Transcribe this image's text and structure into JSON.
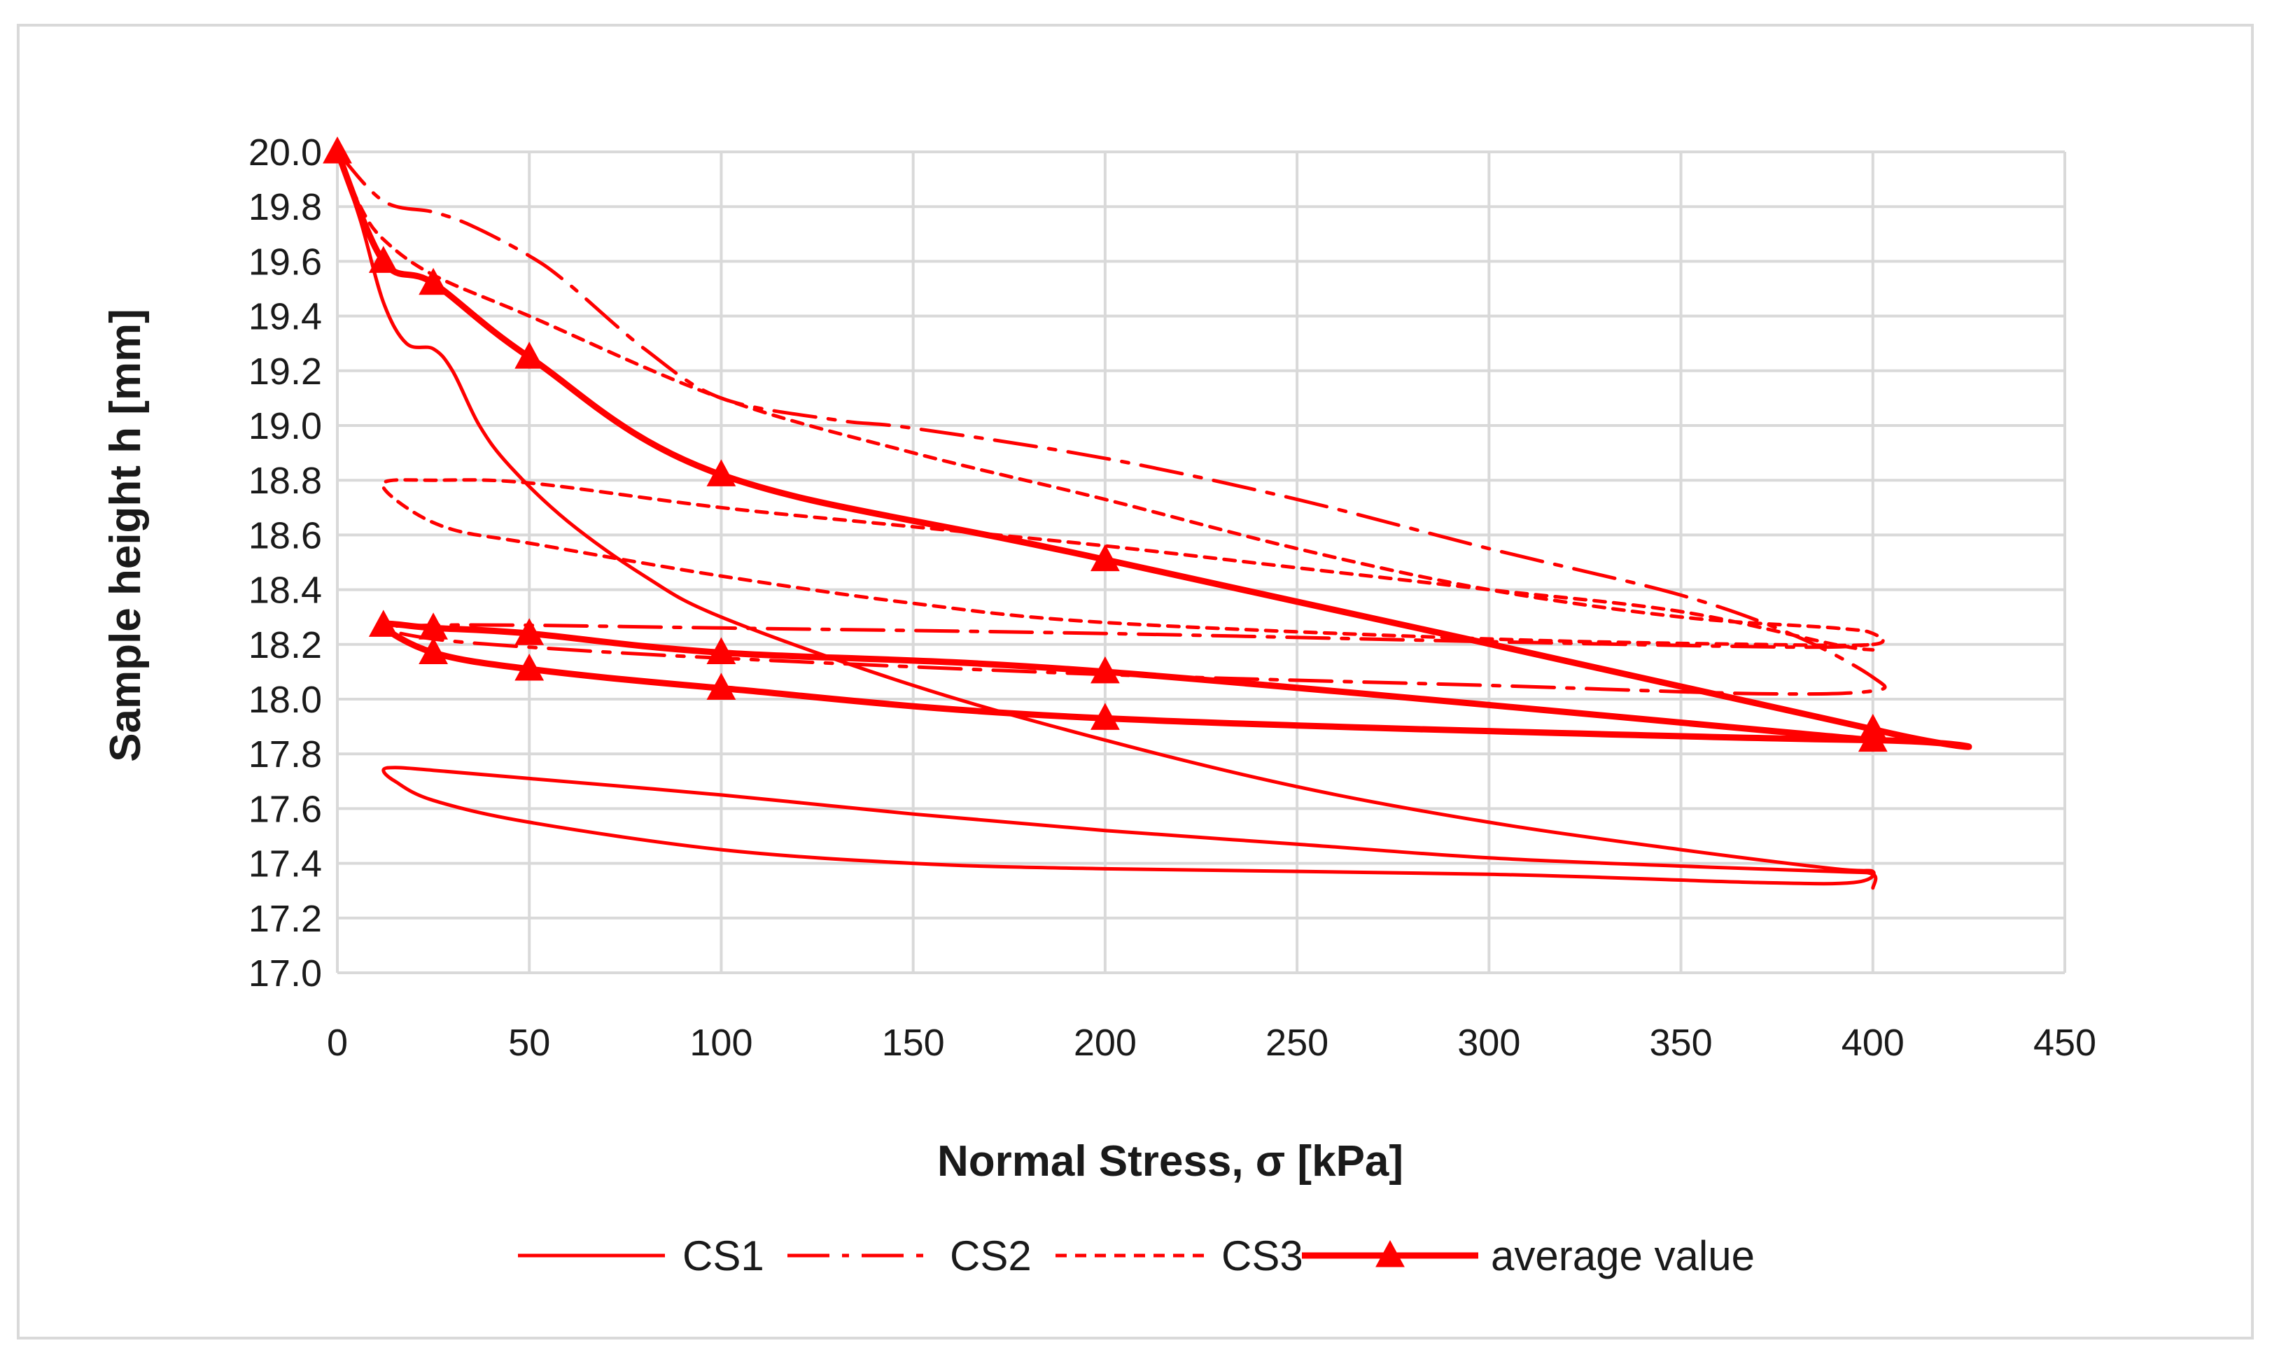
{
  "chart_data": {
    "type": "line",
    "xlabel": "Normal Stress, σ [kPa]",
    "ylabel": "Sample height h [mm]",
    "xlim": [
      0,
      450
    ],
    "ylim": [
      17.0,
      20.0
    ],
    "xticks": [
      0,
      50,
      100,
      150,
      200,
      250,
      300,
      350,
      400,
      450
    ],
    "yticks": [
      17.0,
      17.2,
      17.4,
      17.6,
      17.8,
      18.0,
      18.2,
      18.4,
      18.6,
      18.8,
      19.0,
      19.2,
      19.4,
      19.6,
      19.8,
      20.0
    ],
    "grid": true,
    "legend_position": "bottom",
    "line_color": "#ff0000",
    "series": [
      {
        "name": "CS1",
        "style": "solid",
        "points": [
          [
            0,
            20.0
          ],
          [
            6,
            19.75
          ],
          [
            12,
            19.45
          ],
          [
            18,
            19.3
          ],
          [
            25,
            19.28
          ],
          [
            30,
            19.2
          ],
          [
            37,
            19.0
          ],
          [
            45,
            18.85
          ],
          [
            60,
            18.65
          ],
          [
            80,
            18.45
          ],
          [
            100,
            18.3
          ],
          [
            150,
            18.05
          ],
          [
            200,
            17.85
          ],
          [
            250,
            17.68
          ],
          [
            300,
            17.55
          ],
          [
            350,
            17.45
          ],
          [
            390,
            17.38
          ],
          [
            400,
            17.37
          ],
          [
            395,
            17.33
          ],
          [
            370,
            17.33
          ],
          [
            300,
            17.36
          ],
          [
            200,
            17.38
          ],
          [
            150,
            17.4
          ],
          [
            100,
            17.45
          ],
          [
            50,
            17.55
          ],
          [
            25,
            17.63
          ],
          [
            15,
            17.7
          ],
          [
            12,
            17.74
          ],
          [
            15,
            17.75
          ],
          [
            25,
            17.74
          ],
          [
            50,
            17.71
          ],
          [
            100,
            17.65
          ],
          [
            150,
            17.58
          ],
          [
            200,
            17.52
          ],
          [
            250,
            17.47
          ],
          [
            300,
            17.42
          ],
          [
            350,
            17.39
          ],
          [
            390,
            17.37
          ],
          [
            400,
            17.36
          ],
          [
            400,
            17.31
          ]
        ]
      },
      {
        "name": "CS2",
        "style": "dash-dot",
        "points": [
          [
            0,
            20.0
          ],
          [
            12,
            19.82
          ],
          [
            25,
            19.78
          ],
          [
            35,
            19.73
          ],
          [
            50,
            19.62
          ],
          [
            60,
            19.52
          ],
          [
            80,
            19.28
          ],
          [
            100,
            19.1
          ],
          [
            130,
            19.02
          ],
          [
            150,
            18.99
          ],
          [
            200,
            18.88
          ],
          [
            250,
            18.73
          ],
          [
            300,
            18.55
          ],
          [
            350,
            18.38
          ],
          [
            380,
            18.23
          ],
          [
            400,
            18.08
          ],
          [
            400,
            18.03
          ],
          [
            370,
            18.02
          ],
          [
            300,
            18.05
          ],
          [
            200,
            18.09
          ],
          [
            100,
            18.15
          ],
          [
            50,
            18.19
          ],
          [
            25,
            18.22
          ],
          [
            12,
            18.26
          ],
          [
            25,
            18.27
          ],
          [
            50,
            18.27
          ],
          [
            100,
            18.26
          ],
          [
            200,
            18.24
          ],
          [
            300,
            18.21
          ],
          [
            380,
            18.19
          ],
          [
            400,
            18.2
          ]
        ]
      },
      {
        "name": "CS3",
        "style": "dotted",
        "points": [
          [
            0,
            20.0
          ],
          [
            6,
            19.8
          ],
          [
            12,
            19.68
          ],
          [
            25,
            19.55
          ],
          [
            50,
            19.4
          ],
          [
            100,
            19.1
          ],
          [
            150,
            18.9
          ],
          [
            200,
            18.73
          ],
          [
            250,
            18.55
          ],
          [
            300,
            18.4
          ],
          [
            350,
            18.3
          ],
          [
            390,
            18.26
          ],
          [
            400,
            18.24
          ],
          [
            400,
            18.2
          ],
          [
            370,
            18.2
          ],
          [
            300,
            18.22
          ],
          [
            200,
            18.28
          ],
          [
            150,
            18.35
          ],
          [
            100,
            18.45
          ],
          [
            50,
            18.57
          ],
          [
            30,
            18.62
          ],
          [
            18,
            18.7
          ],
          [
            12,
            18.79
          ],
          [
            25,
            18.8
          ],
          [
            50,
            18.79
          ],
          [
            100,
            18.7
          ],
          [
            150,
            18.63
          ],
          [
            200,
            18.56
          ],
          [
            250,
            18.48
          ],
          [
            300,
            18.4
          ],
          [
            350,
            18.32
          ],
          [
            390,
            18.2
          ],
          [
            400,
            18.18
          ]
        ]
      },
      {
        "name": "average value",
        "style": "bold-triangle",
        "points": [
          [
            0,
            20.0
          ],
          [
            12,
            19.6
          ],
          [
            25,
            19.52
          ],
          [
            50,
            19.25
          ],
          [
            100,
            18.82
          ],
          [
            200,
            18.51
          ],
          [
            400,
            17.89
          ],
          [
            400,
            17.85
          ],
          [
            200,
            17.93
          ],
          [
            100,
            18.04
          ],
          [
            50,
            18.11
          ],
          [
            25,
            18.17
          ],
          [
            12,
            18.27
          ],
          [
            25,
            18.26
          ],
          [
            50,
            18.24
          ],
          [
            100,
            18.17
          ],
          [
            200,
            18.1
          ],
          [
            400,
            17.85
          ]
        ],
        "markers": [
          [
            0,
            20.0
          ],
          [
            12,
            19.6
          ],
          [
            25,
            19.52
          ],
          [
            50,
            19.25
          ],
          [
            100,
            18.82
          ],
          [
            200,
            18.51
          ],
          [
            400,
            17.89
          ],
          [
            400,
            17.85
          ],
          [
            200,
            17.93
          ],
          [
            100,
            18.04
          ],
          [
            50,
            18.11
          ],
          [
            25,
            18.17
          ],
          [
            12,
            18.27
          ],
          [
            25,
            18.26
          ],
          [
            50,
            18.24
          ],
          [
            100,
            18.17
          ],
          [
            200,
            18.1
          ]
        ]
      }
    ]
  }
}
